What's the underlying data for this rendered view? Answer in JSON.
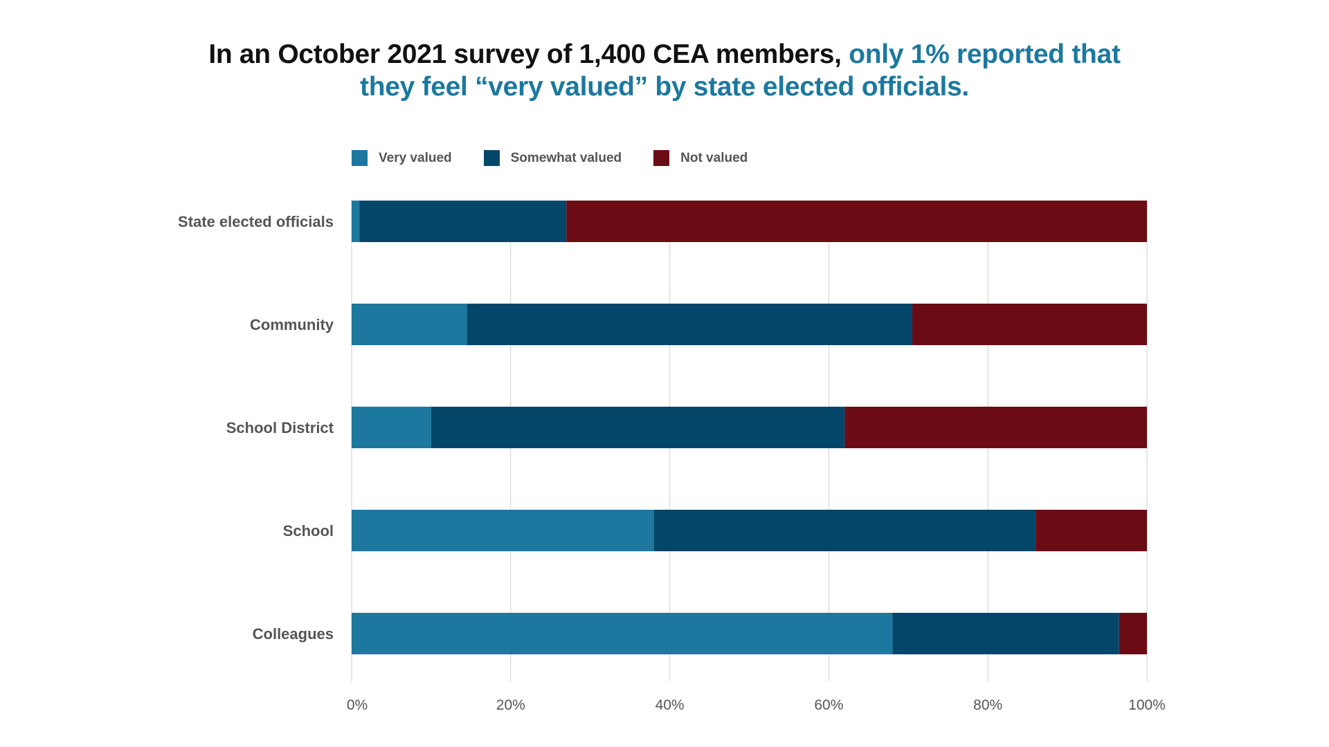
{
  "title": {
    "part1": "In an October 2021 survey of 1,400 CEA members, ",
    "part2": "only 1% reported that",
    "part3": "they feel “very valued” by state elected officials."
  },
  "colors": {
    "very_valued": "#1c789e",
    "somewhat_valued": "#03466a",
    "not_valued": "#6b0b14",
    "grid": "#d9d9d9"
  },
  "chart_data": {
    "type": "bar",
    "orientation": "horizontal",
    "stacked": true,
    "percent": true,
    "categories": [
      "State elected officials",
      "Community",
      "School District",
      "School",
      "Colleagues"
    ],
    "series": [
      {
        "name": "Very valued",
        "values": [
          1,
          14.5,
          10,
          38,
          68
        ]
      },
      {
        "name": "Somewhat valued",
        "values": [
          26,
          56,
          52,
          48,
          28.5
        ]
      },
      {
        "name": "Not valued",
        "values": [
          73,
          29.5,
          38,
          14,
          3.5
        ]
      }
    ],
    "xlim": [
      0,
      100
    ],
    "xticks": [
      "0%",
      "20%",
      "40%",
      "60%",
      "80%",
      "100%"
    ],
    "grid": true,
    "legend": "top"
  }
}
